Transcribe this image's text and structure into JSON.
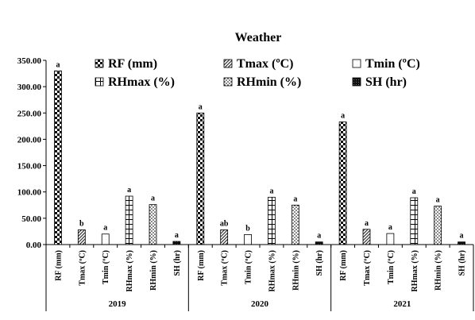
{
  "chart_data": {
    "type": "bar",
    "title": "Weather",
    "xlabel": "",
    "ylabel": "",
    "ylim": [
      0,
      350
    ],
    "yticks": [
      "0.00",
      "50.00",
      "100.00",
      "150.00",
      "200.00",
      "250.00",
      "300.00",
      "350.00"
    ],
    "grid": false,
    "legend_position": "top",
    "variables": [
      {
        "key": "rf",
        "name": "RF (mm)",
        "tick": "RF (mm)",
        "pattern": "checker"
      },
      {
        "key": "tmax",
        "name": "Tmax (ºC)",
        "tick": "Tmax (ºC)",
        "pattern": "diag"
      },
      {
        "key": "tmin",
        "name": "Tmin (ºC)",
        "tick": "Tmin (ºC)",
        "pattern": "plain"
      },
      {
        "key": "rhmax",
        "name": "RHmax (%)",
        "tick": "RHmax (%)",
        "pattern": "grid"
      },
      {
        "key": "rhmin",
        "name": "RHmin (%)",
        "tick": "RHmin (%)",
        "pattern": "dots"
      },
      {
        "key": "sh",
        "name": "SH (hr)",
        "tick": "SH (hr)",
        "pattern": "dark"
      }
    ],
    "groups": [
      {
        "year": "2019",
        "values": [
          330,
          28,
          20,
          92,
          76,
          6
        ],
        "letters": [
          "a",
          "b",
          "a",
          "a",
          "a",
          "a"
        ]
      },
      {
        "year": "2020",
        "values": [
          250,
          28,
          19,
          90,
          75,
          5
        ],
        "letters": [
          "a",
          "ab",
          "b",
          "a",
          "a",
          "a"
        ]
      },
      {
        "year": "2021",
        "values": [
          233,
          29,
          21,
          89,
          73,
          5
        ],
        "letters": [
          "a",
          "a",
          "a",
          "a",
          "a",
          "a"
        ]
      }
    ]
  }
}
